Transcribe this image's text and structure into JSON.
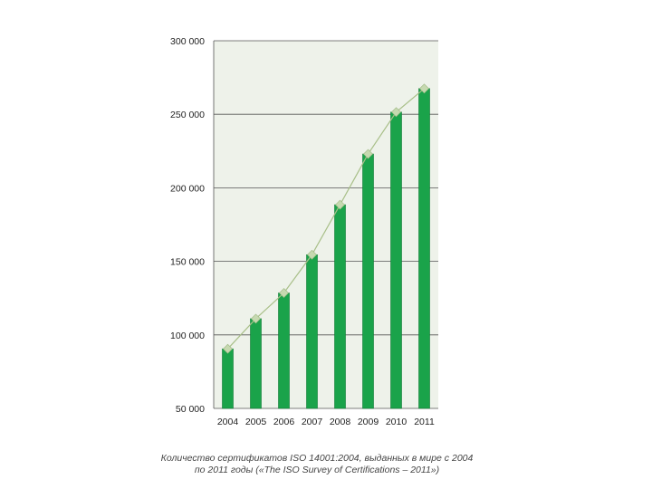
{
  "chart_data": {
    "type": "bar",
    "categories": [
      "2004",
      "2005",
      "2006",
      "2007",
      "2008",
      "2009",
      "2010",
      "2011"
    ],
    "values": [
      90500,
      111000,
      128500,
      154500,
      188500,
      223000,
      251500,
      267500
    ],
    "ylim": [
      50000,
      300000
    ],
    "yticks": [
      50000,
      100000,
      150000,
      200000,
      250000,
      300000
    ],
    "ytick_labels": [
      "50 000",
      "100 000",
      "150 000",
      "200 000",
      "250 000",
      "300 000"
    ],
    "title": "",
    "xlabel": "",
    "ylabel": "",
    "grid": true,
    "overlay": "line-with-diamond-markers",
    "colors": {
      "bar": "#1aa34a",
      "bar_edge": "#0e7a33",
      "plot_bg": "#eef2ea",
      "line": "#a8bf88",
      "marker": "#c6d9b0",
      "grid": "#555555"
    }
  },
  "caption": {
    "line1": "Количество сертификатов ISO 14001:2004, выданных в мире с 2004",
    "line2": "по 2011 годы («The ISO Survey of Certifications – 2011»)"
  }
}
